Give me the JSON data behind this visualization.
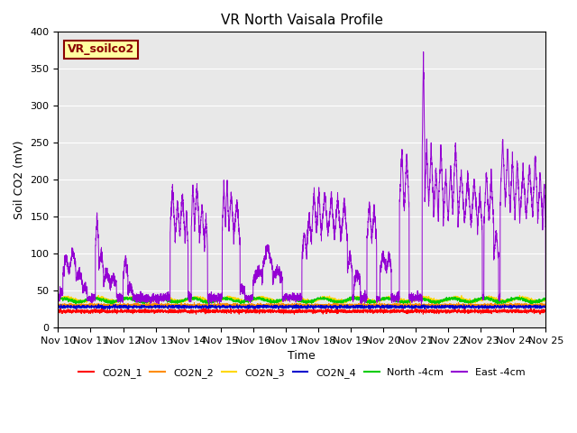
{
  "title": "VR North Vaisala Profile",
  "ylabel": "Soil CO2 (mV)",
  "xlabel": "Time",
  "ylim": [
    0,
    400
  ],
  "yticks": [
    0,
    50,
    100,
    150,
    200,
    250,
    300,
    350,
    400
  ],
  "annotation_text": "VR_soilco2",
  "annotation_color": "#8B0000",
  "annotation_bg": "#FFFFA0",
  "bg_color": "#E8E8E8",
  "line_colors": {
    "CO2N_1": "#FF0000",
    "CO2N_2": "#FF8C00",
    "CO2N_3": "#FFD700",
    "CO2N_4": "#0000CD",
    "North_4cm": "#00CC00",
    "East_4cm": "#9400D3"
  },
  "xtick_labels": [
    "Nov 10",
    "Nov 11",
    "Nov 12",
    "Nov 13",
    "Nov 14",
    "Nov 15",
    "Nov 16",
    "Nov 17",
    "Nov 18",
    "Nov 19",
    "Nov 20",
    "Nov 21",
    "Nov 22",
    "Nov 23",
    "Nov 24",
    "Nov 25"
  ]
}
